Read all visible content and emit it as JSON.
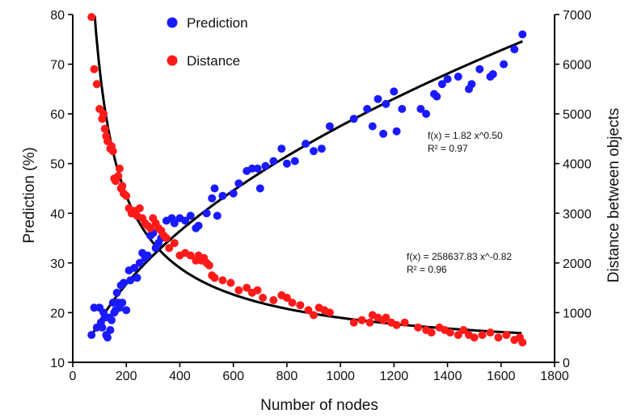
{
  "chart_data": {
    "type": "scatter",
    "xlabel": "Number of nodes",
    "ylabel_left": "Prediction (%)",
    "ylabel_right": "Distance between objects",
    "xlim": [
      0,
      1800
    ],
    "ylim_left": [
      10,
      80
    ],
    "ylim_right": [
      0,
      7000
    ],
    "x_ticks": [
      "0",
      "200",
      "400",
      "600",
      "800",
      "1000",
      "1200",
      "1400",
      "1600",
      "1800"
    ],
    "y_left_ticks": [
      "10",
      "20",
      "30",
      "40",
      "50",
      "60",
      "70",
      "80"
    ],
    "y_right_ticks": [
      "0",
      "1000",
      "2000",
      "3000",
      "4000",
      "5000",
      "6000",
      "7000"
    ],
    "legend": [
      {
        "name": "Prediction",
        "color": "#1a1aff"
      },
      {
        "name": "Distance",
        "color": "#ff1a1a"
      }
    ],
    "annotations": {
      "prediction_fit": [
        "f(x) = 1.82 x^0.50",
        "R² = 0.97"
      ],
      "distance_fit": [
        "f(x) = 258637.83 x^-0.82",
        "R² = 0.96"
      ]
    },
    "fits": {
      "prediction": {
        "a": 1.82,
        "b": 0.5,
        "axis": "left"
      },
      "distance": {
        "a": 258637.83,
        "b": -0.82,
        "axis": "right"
      }
    },
    "series": [
      {
        "name": "Prediction",
        "axis": "left",
        "color": "#1a1aff",
        "points": [
          [
            70,
            15.5
          ],
          [
            80,
            21
          ],
          [
            90,
            17
          ],
          [
            100,
            21
          ],
          [
            105,
            18
          ],
          [
            110,
            17
          ],
          [
            115,
            20
          ],
          [
            120,
            19
          ],
          [
            125,
            15.5
          ],
          [
            130,
            15
          ],
          [
            135,
            19
          ],
          [
            140,
            16.5
          ],
          [
            145,
            18.5
          ],
          [
            150,
            22
          ],
          [
            155,
            20
          ],
          [
            160,
            20.5
          ],
          [
            165,
            24
          ],
          [
            170,
            22
          ],
          [
            175,
            21
          ],
          [
            180,
            25.5
          ],
          [
            185,
            22
          ],
          [
            190,
            26
          ],
          [
            200,
            20.5
          ],
          [
            210,
            28.5
          ],
          [
            215,
            26.5
          ],
          [
            230,
            29
          ],
          [
            240,
            27
          ],
          [
            250,
            30
          ],
          [
            260,
            32
          ],
          [
            270,
            31
          ],
          [
            280,
            31.5
          ],
          [
            290,
            35.5
          ],
          [
            300,
            36
          ],
          [
            310,
            33
          ],
          [
            320,
            34
          ],
          [
            330,
            35
          ],
          [
            350,
            38.5
          ],
          [
            370,
            39
          ],
          [
            380,
            38
          ],
          [
            400,
            39
          ],
          [
            420,
            38.5
          ],
          [
            440,
            39.5
          ],
          [
            460,
            37
          ],
          [
            470,
            37.5
          ],
          [
            500,
            40
          ],
          [
            520,
            43
          ],
          [
            530,
            45
          ],
          [
            540,
            39.5
          ],
          [
            560,
            43.5
          ],
          [
            600,
            44
          ],
          [
            620,
            46
          ],
          [
            650,
            48.5
          ],
          [
            670,
            49
          ],
          [
            690,
            49
          ],
          [
            700,
            45
          ],
          [
            720,
            49.5
          ],
          [
            750,
            50.5
          ],
          [
            780,
            53
          ],
          [
            800,
            50
          ],
          [
            830,
            50.5
          ],
          [
            870,
            54
          ],
          [
            900,
            52.5
          ],
          [
            930,
            53
          ],
          [
            960,
            57.5
          ],
          [
            1050,
            59
          ],
          [
            1100,
            61
          ],
          [
            1120,
            57.5
          ],
          [
            1140,
            63
          ],
          [
            1160,
            56
          ],
          [
            1170,
            62
          ],
          [
            1200,
            64.5
          ],
          [
            1210,
            56.5
          ],
          [
            1230,
            61
          ],
          [
            1300,
            61
          ],
          [
            1320,
            60
          ],
          [
            1350,
            64
          ],
          [
            1360,
            63.5
          ],
          [
            1380,
            66
          ],
          [
            1400,
            67
          ],
          [
            1440,
            67.5
          ],
          [
            1480,
            65
          ],
          [
            1490,
            66
          ],
          [
            1520,
            69
          ],
          [
            1560,
            67.5
          ],
          [
            1570,
            68
          ],
          [
            1610,
            70
          ],
          [
            1650,
            73
          ],
          [
            1680,
            76
          ]
        ]
      },
      {
        "name": "Distance",
        "axis": "right",
        "color": "#ff1a1a",
        "points": [
          [
            70,
            6950
          ],
          [
            80,
            5900
          ],
          [
            90,
            5600
          ],
          [
            100,
            5100
          ],
          [
            110,
            4900
          ],
          [
            115,
            5000
          ],
          [
            120,
            4700
          ],
          [
            125,
            4550
          ],
          [
            130,
            4450
          ],
          [
            140,
            4300
          ],
          [
            145,
            4350
          ],
          [
            150,
            4250
          ],
          [
            155,
            3700
          ],
          [
            160,
            3650
          ],
          [
            170,
            3750
          ],
          [
            175,
            3900
          ],
          [
            180,
            3500
          ],
          [
            185,
            3550
          ],
          [
            190,
            3400
          ],
          [
            200,
            3350
          ],
          [
            210,
            3100
          ],
          [
            220,
            3000
          ],
          [
            230,
            3050
          ],
          [
            240,
            2950
          ],
          [
            250,
            3100
          ],
          [
            260,
            2900
          ],
          [
            270,
            2800
          ],
          [
            280,
            2750
          ],
          [
            290,
            2700
          ],
          [
            300,
            2900
          ],
          [
            310,
            2800
          ],
          [
            320,
            2700
          ],
          [
            330,
            2650
          ],
          [
            340,
            2550
          ],
          [
            350,
            2500
          ],
          [
            360,
            2300
          ],
          [
            380,
            2400
          ],
          [
            400,
            2150
          ],
          [
            420,
            2200
          ],
          [
            440,
            2150
          ],
          [
            460,
            2050
          ],
          [
            470,
            2150
          ],
          [
            480,
            2050
          ],
          [
            490,
            2100
          ],
          [
            500,
            2000
          ],
          [
            510,
            1950
          ],
          [
            520,
            1750
          ],
          [
            530,
            1700
          ],
          [
            560,
            1650
          ],
          [
            590,
            1600
          ],
          [
            620,
            1450
          ],
          [
            650,
            1500
          ],
          [
            670,
            1400
          ],
          [
            690,
            1450
          ],
          [
            710,
            1300
          ],
          [
            750,
            1250
          ],
          [
            780,
            1350
          ],
          [
            800,
            1300
          ],
          [
            820,
            1200
          ],
          [
            850,
            1150
          ],
          [
            880,
            1050
          ],
          [
            900,
            950
          ],
          [
            920,
            1100
          ],
          [
            940,
            1050
          ],
          [
            960,
            1000
          ],
          [
            1050,
            800
          ],
          [
            1080,
            850
          ],
          [
            1110,
            800
          ],
          [
            1120,
            950
          ],
          [
            1140,
            900
          ],
          [
            1160,
            850
          ],
          [
            1170,
            900
          ],
          [
            1190,
            800
          ],
          [
            1210,
            750
          ],
          [
            1240,
            800
          ],
          [
            1290,
            700
          ],
          [
            1320,
            650
          ],
          [
            1340,
            600
          ],
          [
            1370,
            700
          ],
          [
            1390,
            650
          ],
          [
            1410,
            600
          ],
          [
            1440,
            550
          ],
          [
            1460,
            650
          ],
          [
            1480,
            550
          ],
          [
            1500,
            500
          ],
          [
            1530,
            550
          ],
          [
            1560,
            600
          ],
          [
            1590,
            500
          ],
          [
            1620,
            550
          ],
          [
            1650,
            450
          ],
          [
            1670,
            500
          ],
          [
            1680,
            400
          ]
        ]
      }
    ]
  }
}
